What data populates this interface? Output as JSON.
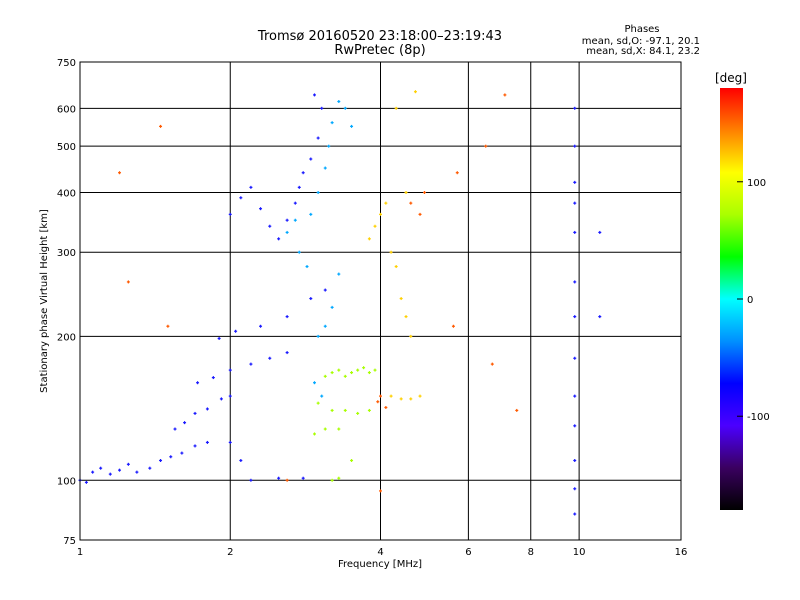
{
  "chart_data": {
    "type": "scatter",
    "title": "Tromsø 20160520 23:18:00–23:19:43",
    "subtitle": "RwPretec (8p)",
    "xlabel": "Frequency [MHz]",
    "ylabel": "Stationary phase Virtual Height [km]",
    "x_scale": "log",
    "y_scale": "log",
    "xlim": [
      1,
      16
    ],
    "ylim": [
      75,
      750
    ],
    "x_ticks": [
      1,
      2,
      4,
      6,
      8,
      10,
      16
    ],
    "y_ticks": [
      75,
      100,
      200,
      300,
      400,
      500,
      600,
      750
    ],
    "grid": true,
    "stats": {
      "heading": "Phases",
      "o_line": "mean, sd,O: -97.1, 20.1",
      "x_line": "mean, sd,X:  84.1, 23.2"
    },
    "colorbar": {
      "unit": "[deg]",
      "ticks": [
        100,
        0,
        -100
      ],
      "range": [
        -180,
        180
      ],
      "colors": [
        "#000000",
        "#3a0060",
        "#4b00ff",
        "#0000ff",
        "#0090ff",
        "#00ffff",
        "#00ff00",
        "#aaff00",
        "#ffff00",
        "#ff8000",
        "#ff0000"
      ]
    },
    "series": [
      {
        "points": [
          [
            1.0,
            100
          ],
          [
            1.03,
            99
          ],
          [
            1.06,
            104
          ],
          [
            1.1,
            106
          ],
          [
            1.15,
            103
          ],
          [
            1.2,
            105
          ],
          [
            1.25,
            108
          ],
          [
            1.3,
            104
          ],
          [
            1.38,
            106
          ],
          [
            1.45,
            110
          ],
          [
            1.52,
            112
          ],
          [
            1.6,
            114
          ],
          [
            1.7,
            118
          ],
          [
            1.8,
            120
          ],
          [
            1.55,
            128
          ],
          [
            1.62,
            132
          ],
          [
            1.7,
            138
          ],
          [
            1.8,
            141
          ],
          [
            1.92,
            148
          ],
          [
            2.0,
            150
          ],
          [
            1.72,
            160
          ],
          [
            1.85,
            164
          ],
          [
            2.0,
            170
          ],
          [
            2.2,
            175
          ],
          [
            2.4,
            180
          ],
          [
            2.6,
            185
          ],
          [
            1.9,
            198
          ],
          [
            2.05,
            205
          ],
          [
            2.3,
            210
          ],
          [
            2.6,
            220
          ],
          [
            2.9,
            240
          ],
          [
            3.1,
            250
          ],
          [
            2.0,
            360
          ],
          [
            2.1,
            390
          ],
          [
            2.2,
            410
          ],
          [
            2.3,
            370
          ],
          [
            2.4,
            340
          ],
          [
            2.5,
            320
          ],
          [
            2.6,
            350
          ],
          [
            2.7,
            380
          ],
          [
            2.75,
            410
          ],
          [
            2.8,
            440
          ],
          [
            2.9,
            470
          ],
          [
            3.0,
            520
          ],
          [
            3.05,
            600
          ],
          [
            2.95,
            640
          ],
          [
            2.2,
            100
          ],
          [
            2.5,
            101
          ],
          [
            2.8,
            101
          ],
          [
            2.1,
            110
          ],
          [
            2.0,
            120
          ],
          [
            9.8,
            600
          ],
          [
            9.8,
            500
          ],
          [
            9.8,
            420
          ],
          [
            9.8,
            380
          ],
          [
            9.8,
            330
          ],
          [
            9.8,
            260
          ],
          [
            9.8,
            220
          ],
          [
            9.8,
            180
          ],
          [
            9.8,
            150
          ],
          [
            9.8,
            130
          ],
          [
            9.8,
            110
          ],
          [
            9.8,
            96
          ],
          [
            9.8,
            85
          ],
          [
            11.0,
            330
          ],
          [
            11.0,
            220
          ]
        ]
      },
      {
        "points": [
          [
            2.6,
            330
          ],
          [
            2.7,
            350
          ],
          [
            2.75,
            300
          ],
          [
            2.85,
            280
          ],
          [
            2.9,
            360
          ],
          [
            3.0,
            400
          ],
          [
            3.1,
            450
          ],
          [
            3.15,
            500
          ],
          [
            3.2,
            560
          ],
          [
            3.3,
            620
          ],
          [
            3.4,
            600
          ],
          [
            3.5,
            550
          ],
          [
            3.0,
            200
          ],
          [
            3.1,
            210
          ],
          [
            3.2,
            230
          ],
          [
            3.3,
            270
          ],
          [
            2.95,
            160
          ],
          [
            3.05,
            150
          ]
        ]
      },
      {
        "points": [
          [
            3.1,
            165
          ],
          [
            3.2,
            168
          ],
          [
            3.3,
            170
          ],
          [
            3.4,
            165
          ],
          [
            3.5,
            168
          ],
          [
            3.6,
            170
          ],
          [
            3.7,
            172
          ],
          [
            3.8,
            168
          ],
          [
            3.9,
            170
          ],
          [
            3.0,
            145
          ],
          [
            3.2,
            140
          ],
          [
            3.4,
            140
          ],
          [
            3.6,
            138
          ],
          [
            3.8,
            140
          ],
          [
            2.95,
            125
          ],
          [
            3.1,
            128
          ],
          [
            3.3,
            128
          ],
          [
            3.2,
            100
          ],
          [
            3.3,
            101
          ],
          [
            3.5,
            110
          ]
        ]
      },
      {
        "points": [
          [
            3.8,
            320
          ],
          [
            3.9,
            340
          ],
          [
            4.0,
            360
          ],
          [
            4.1,
            380
          ],
          [
            4.2,
            300
          ],
          [
            4.3,
            280
          ],
          [
            4.4,
            240
          ],
          [
            4.5,
            220
          ],
          [
            4.6,
            200
          ],
          [
            4.2,
            150
          ],
          [
            4.4,
            148
          ],
          [
            4.6,
            148
          ],
          [
            4.8,
            150
          ],
          [
            4.3,
            600
          ],
          [
            4.7,
            650
          ],
          [
            4.5,
            400
          ]
        ]
      },
      {
        "points": [
          [
            4.0,
            150
          ],
          [
            3.95,
            146
          ],
          [
            4.1,
            142
          ],
          [
            4.6,
            380
          ],
          [
            4.8,
            360
          ],
          [
            4.9,
            400
          ],
          [
            5.6,
            210
          ],
          [
            6.5,
            500
          ],
          [
            6.7,
            175
          ],
          [
            7.1,
            640
          ],
          [
            1.2,
            440
          ],
          [
            1.25,
            260
          ],
          [
            1.45,
            550
          ],
          [
            1.5,
            210
          ],
          [
            7.5,
            140
          ],
          [
            5.7,
            440
          ],
          [
            4.0,
            95
          ],
          [
            2.6,
            100
          ]
        ]
      }
    ]
  }
}
